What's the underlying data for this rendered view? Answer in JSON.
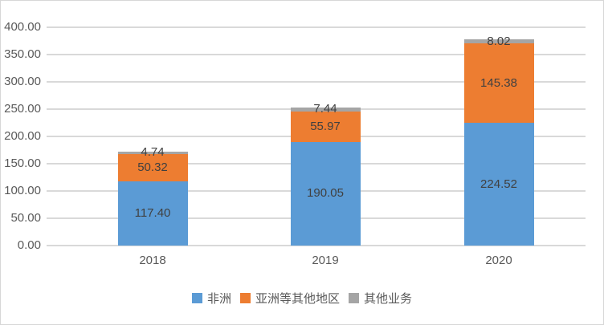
{
  "chart_data": {
    "type": "bar",
    "stacked": true,
    "title": "",
    "xlabel": "",
    "ylabel": "",
    "categories": [
      "2018",
      "2019",
      "2020"
    ],
    "series": [
      {
        "name": "非洲",
        "color": "#5b9bd5",
        "values": [
          117.4,
          190.05,
          224.52
        ]
      },
      {
        "name": "亚洲等其他地区",
        "color": "#ed7d31",
        "values": [
          50.32,
          55.97,
          145.38
        ]
      },
      {
        "name": "其他业务",
        "color": "#a5a5a5",
        "values": [
          4.74,
          7.44,
          8.02
        ]
      }
    ],
    "data_labels_shown": true,
    "y_axis": {
      "min": 0,
      "max": 400,
      "step": 50,
      "tick_labels": [
        "0.00",
        "50.00",
        "100.00",
        "150.00",
        "200.00",
        "250.00",
        "300.00",
        "350.00",
        "400.00"
      ]
    },
    "grid": true,
    "legend_position": "bottom"
  },
  "colors": {
    "gridline": "#d9d9d9",
    "axis_text": "#595959",
    "data_label_text": "#404040",
    "chart_border": "#d7d7d7",
    "background": "#ffffff"
  }
}
